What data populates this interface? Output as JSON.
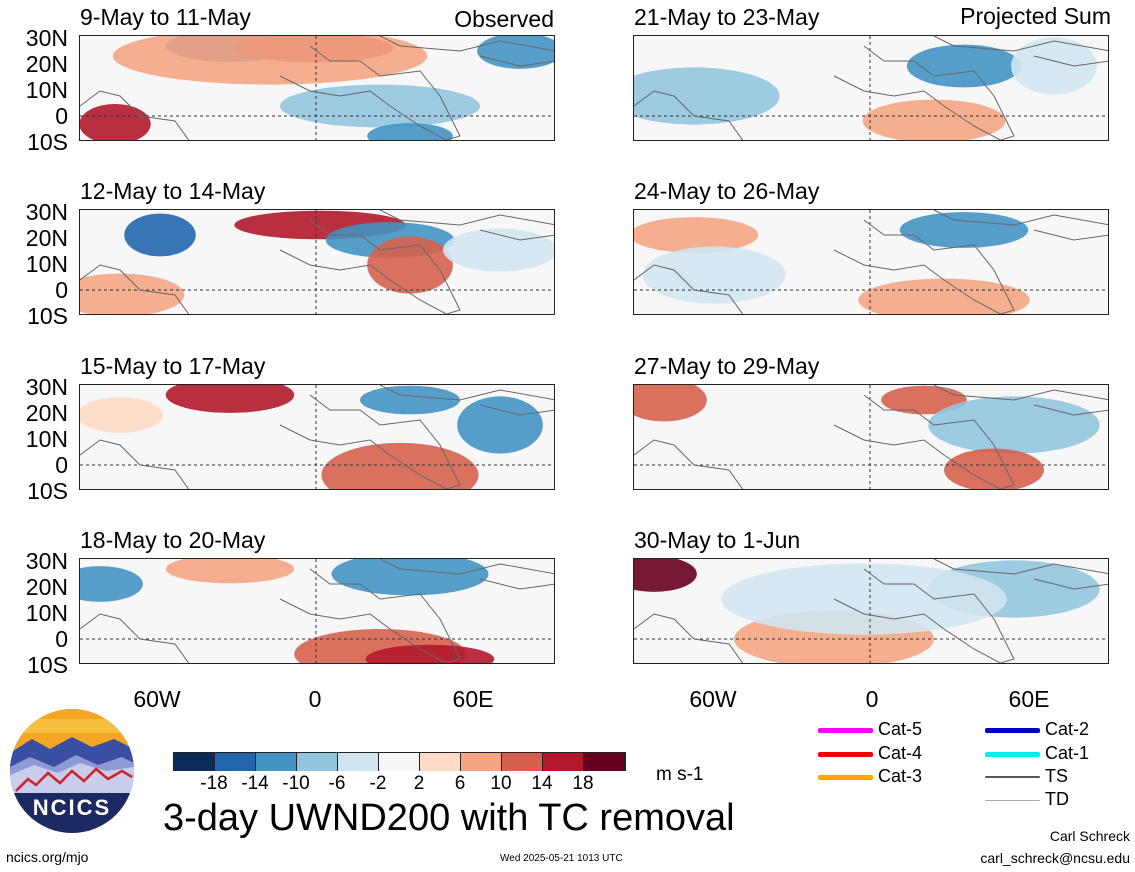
{
  "headers": {
    "left": "Observed",
    "right": "Projected Sum"
  },
  "panels_left": [
    {
      "title": "9-May to 11-May"
    },
    {
      "title": "12-May to 14-May"
    },
    {
      "title": "15-May to 17-May"
    },
    {
      "title": "18-May to 20-May"
    }
  ],
  "panels_right": [
    {
      "title": "21-May to 23-May"
    },
    {
      "title": "24-May to 26-May"
    },
    {
      "title": "27-May to 29-May"
    },
    {
      "title": "30-May to 1-Jun"
    }
  ],
  "lat_labels": [
    "30N",
    "20N",
    "10N",
    "0",
    "10S"
  ],
  "lon_labels": [
    "60W",
    "0",
    "60E"
  ],
  "colorbar": {
    "ticks": [
      "-18",
      "-14",
      "-10",
      "-6",
      "-2",
      "2",
      "6",
      "10",
      "14",
      "18"
    ],
    "colors": [
      "#0b2a5c",
      "#2166ac",
      "#4393c3",
      "#92c5de",
      "#d1e5f0",
      "#f7f7f7",
      "#fddbc7",
      "#f4a582",
      "#d6604d",
      "#b2182b",
      "#67001f"
    ],
    "units": "m s-1"
  },
  "legend": [
    {
      "label": "Cat-5",
      "color": "#ff00ff"
    },
    {
      "label": "Cat-4",
      "color": "#ee0000"
    },
    {
      "label": "Cat-3",
      "color": "#ffa500"
    },
    {
      "label": "Cat-2",
      "color": "#0000cc"
    },
    {
      "label": "Cat-1",
      "color": "#00eeee"
    },
    {
      "label": "TS",
      "color": "#555555"
    },
    {
      "label": "TD",
      "color": "#aaaaaa"
    }
  ],
  "main_title": "3-day UWND200 with TC removal",
  "logo_text": "NCICS",
  "footer": {
    "url": "ncics.org/mjo",
    "timestamp": "Wed 2025-05-21 1013 UTC",
    "author": "Carl Schreck",
    "email": "carl_schreck@ncsu.edu"
  }
}
